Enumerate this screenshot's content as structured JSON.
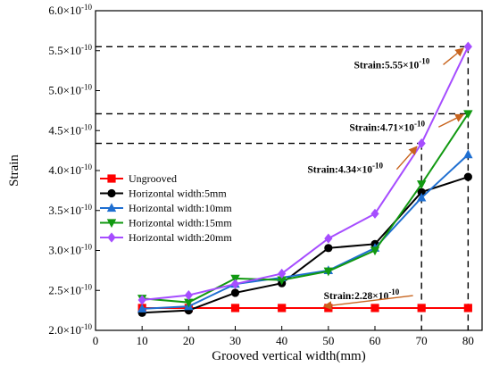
{
  "chart_data": {
    "type": "line",
    "xlabel": "Grooved vertical width(mm)",
    "ylabel": "Strain",
    "xlim": [
      0,
      83
    ],
    "ylim": [
      2.0,
      6.0
    ],
    "y_exponent": "-10",
    "x_ticks": [
      0,
      10,
      20,
      30,
      40,
      50,
      60,
      70,
      80
    ],
    "y_ticks": [
      2.0,
      2.5,
      3.0,
      3.5,
      4.0,
      4.5,
      5.0,
      5.5,
      6.0
    ],
    "y_tick_labels": [
      "2.0",
      "2.5",
      "3.0",
      "3.5",
      "4.0",
      "4.5",
      "5.0",
      "5.5",
      "6.0"
    ],
    "x": [
      10,
      20,
      30,
      40,
      50,
      60,
      70,
      80
    ],
    "legend_position": "center-left",
    "series": [
      {
        "name": "Ungrooved",
        "color": "#ff0000",
        "marker": "square",
        "values": [
          2.28,
          2.28,
          2.28,
          2.28,
          2.28,
          2.28,
          2.28,
          2.28
        ]
      },
      {
        "name": "Horizontal width:5mm",
        "color": "#000000",
        "marker": "circle",
        "values": [
          2.22,
          2.25,
          2.47,
          2.59,
          3.03,
          3.08,
          3.73,
          3.92
        ]
      },
      {
        "name": "Horizontal width:10mm",
        "color": "#1f6fd1",
        "marker": "triangle-up",
        "values": [
          2.27,
          2.3,
          2.58,
          2.66,
          2.75,
          3.03,
          3.66,
          4.2
        ]
      },
      {
        "name": "Horizontal width:15mm",
        "color": "#119911",
        "marker": "triangle-down",
        "values": [
          2.4,
          2.35,
          2.65,
          2.63,
          2.74,
          3.0,
          3.83,
          4.71
        ]
      },
      {
        "name": "Horizontal width:20mm",
        "color": "#a64dff",
        "marker": "diamond",
        "values": [
          2.38,
          2.44,
          2.58,
          2.71,
          3.15,
          3.46,
          4.34,
          5.55
        ]
      }
    ],
    "reference_lines": [
      {
        "y": 5.55,
        "x_end": 80
      },
      {
        "y": 4.71,
        "x_end": 80
      },
      {
        "y": 4.34,
        "x_end": 70
      }
    ],
    "vertical_lines": [
      {
        "x": 70,
        "y_top": 4.34
      },
      {
        "x": 80,
        "y_top": 5.55
      }
    ],
    "annotations": [
      {
        "label": "Strain:5.55",
        "exponent": "-10",
        "text_x": 55.5,
        "text_y": 5.28,
        "arrow_to_x": 79,
        "arrow_to_y": 5.53
      },
      {
        "label": "Strain:4.71",
        "exponent": "-10",
        "text_x": 54.5,
        "text_y": 4.5,
        "arrow_to_x": 79,
        "arrow_to_y": 4.7
      },
      {
        "label": "Strain:4.34",
        "exponent": "-10",
        "text_x": 45.5,
        "text_y": 3.97,
        "arrow_to_x": 69,
        "arrow_to_y": 4.3
      },
      {
        "label": "Strain:2.28",
        "exponent": "-10",
        "text_x": 49,
        "text_y": 2.39,
        "arrow_to_x": 49,
        "arrow_to_y": 2.3
      }
    ],
    "colors": {
      "arrow": "#c8641e",
      "axis": "#000000",
      "dash": "#000000"
    }
  }
}
